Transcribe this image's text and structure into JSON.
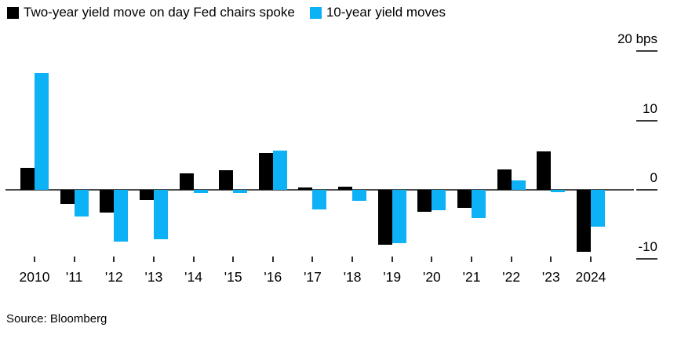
{
  "legend": {
    "position": "top"
  },
  "chart_data": {
    "type": "bar",
    "categories": [
      "2010",
      "'11",
      "'12",
      "'13",
      "'14",
      "'15",
      "'16",
      "'17",
      "'18",
      "'19",
      "'20",
      "'21",
      "'22",
      "'23",
      "2024"
    ],
    "series": [
      {
        "name": "Two-year yield move on day Fed chairs spoke",
        "color": "#000000",
        "values": [
          3.2,
          -2.0,
          -3.3,
          -1.5,
          2.4,
          2.8,
          5.3,
          0.3,
          0.5,
          -7.9,
          -3.2,
          -2.6,
          3.0,
          5.5,
          -8.9
        ]
      },
      {
        "name": "10-year yield moves",
        "color": "#0db1f6",
        "values": [
          16.9,
          -3.9,
          -7.5,
          -7.1,
          -0.4,
          -0.4,
          5.7,
          -2.8,
          -1.6,
          -7.7,
          -3.0,
          -4.1,
          1.4,
          -0.3,
          -5.3
        ]
      }
    ],
    "unit": "bps",
    "yticks": [
      20,
      10,
      0,
      -10
    ],
    "ytick_labels": [
      "20 bps",
      "10",
      "0",
      "-10"
    ],
    "ylim": [
      -10.7,
      20
    ],
    "grid": "off",
    "legend_position": "top",
    "axis_side": "right"
  },
  "source": "Source: Bloomberg"
}
